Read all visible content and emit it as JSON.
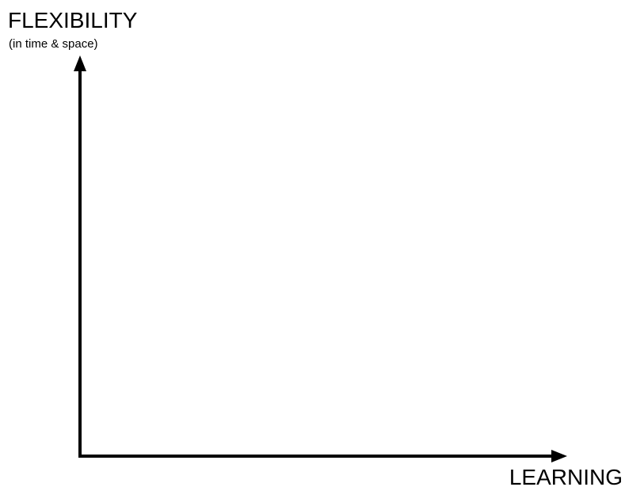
{
  "y_axis": {
    "label": "FLEXIBILITY",
    "sublabel": "(in time & space)"
  },
  "x_axis": {
    "label": "LEARNING"
  }
}
